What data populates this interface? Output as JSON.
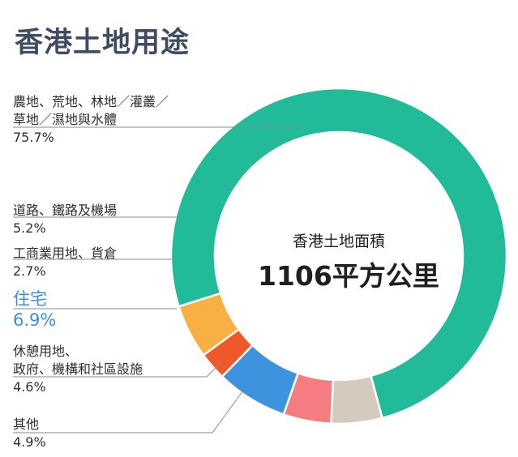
{
  "chart_data": {
    "type": "pie",
    "title": "香港土地用途",
    "center_subtitle": "香港土地面積",
    "center_value": "1106平方公里",
    "categories": [
      "農地、荒地、林地／灌叢／草地／濕地與水體",
      "道路、鐵路及機場",
      "工商業用地、貨倉",
      "住宅",
      "休憩用地、政府、機構和社區設施",
      "其他"
    ],
    "values": [
      75.7,
      5.2,
      2.7,
      6.9,
      4.6,
      4.9
    ],
    "colors": [
      "#22bb9a",
      "#f8b042",
      "#f0582a",
      "#3e93df",
      "#f57c80",
      "#d4cbbe"
    ],
    "labels": [
      {
        "lines": [
          "農地、荒地、林地／灌叢／",
          "草地／濕地與水體"
        ],
        "pct": "75.7%"
      },
      {
        "lines": [
          "道路、鐵路及機場"
        ],
        "pct": "5.2%"
      },
      {
        "lines": [
          "工商業用地、貨倉"
        ],
        "pct": "2.7%"
      },
      {
        "lines": [
          "住宅"
        ],
        "pct": "6.9%"
      },
      {
        "lines": [
          "休憩用地、",
          "政府、機構和社區設施"
        ],
        "pct": "4.6%"
      },
      {
        "lines": [
          "其他"
        ],
        "pct": "4.9%"
      }
    ]
  },
  "styles": {
    "title_color": "#3f4b63",
    "highlight_color": "#3a8fd6",
    "leader_color": "#8a8a8a"
  }
}
